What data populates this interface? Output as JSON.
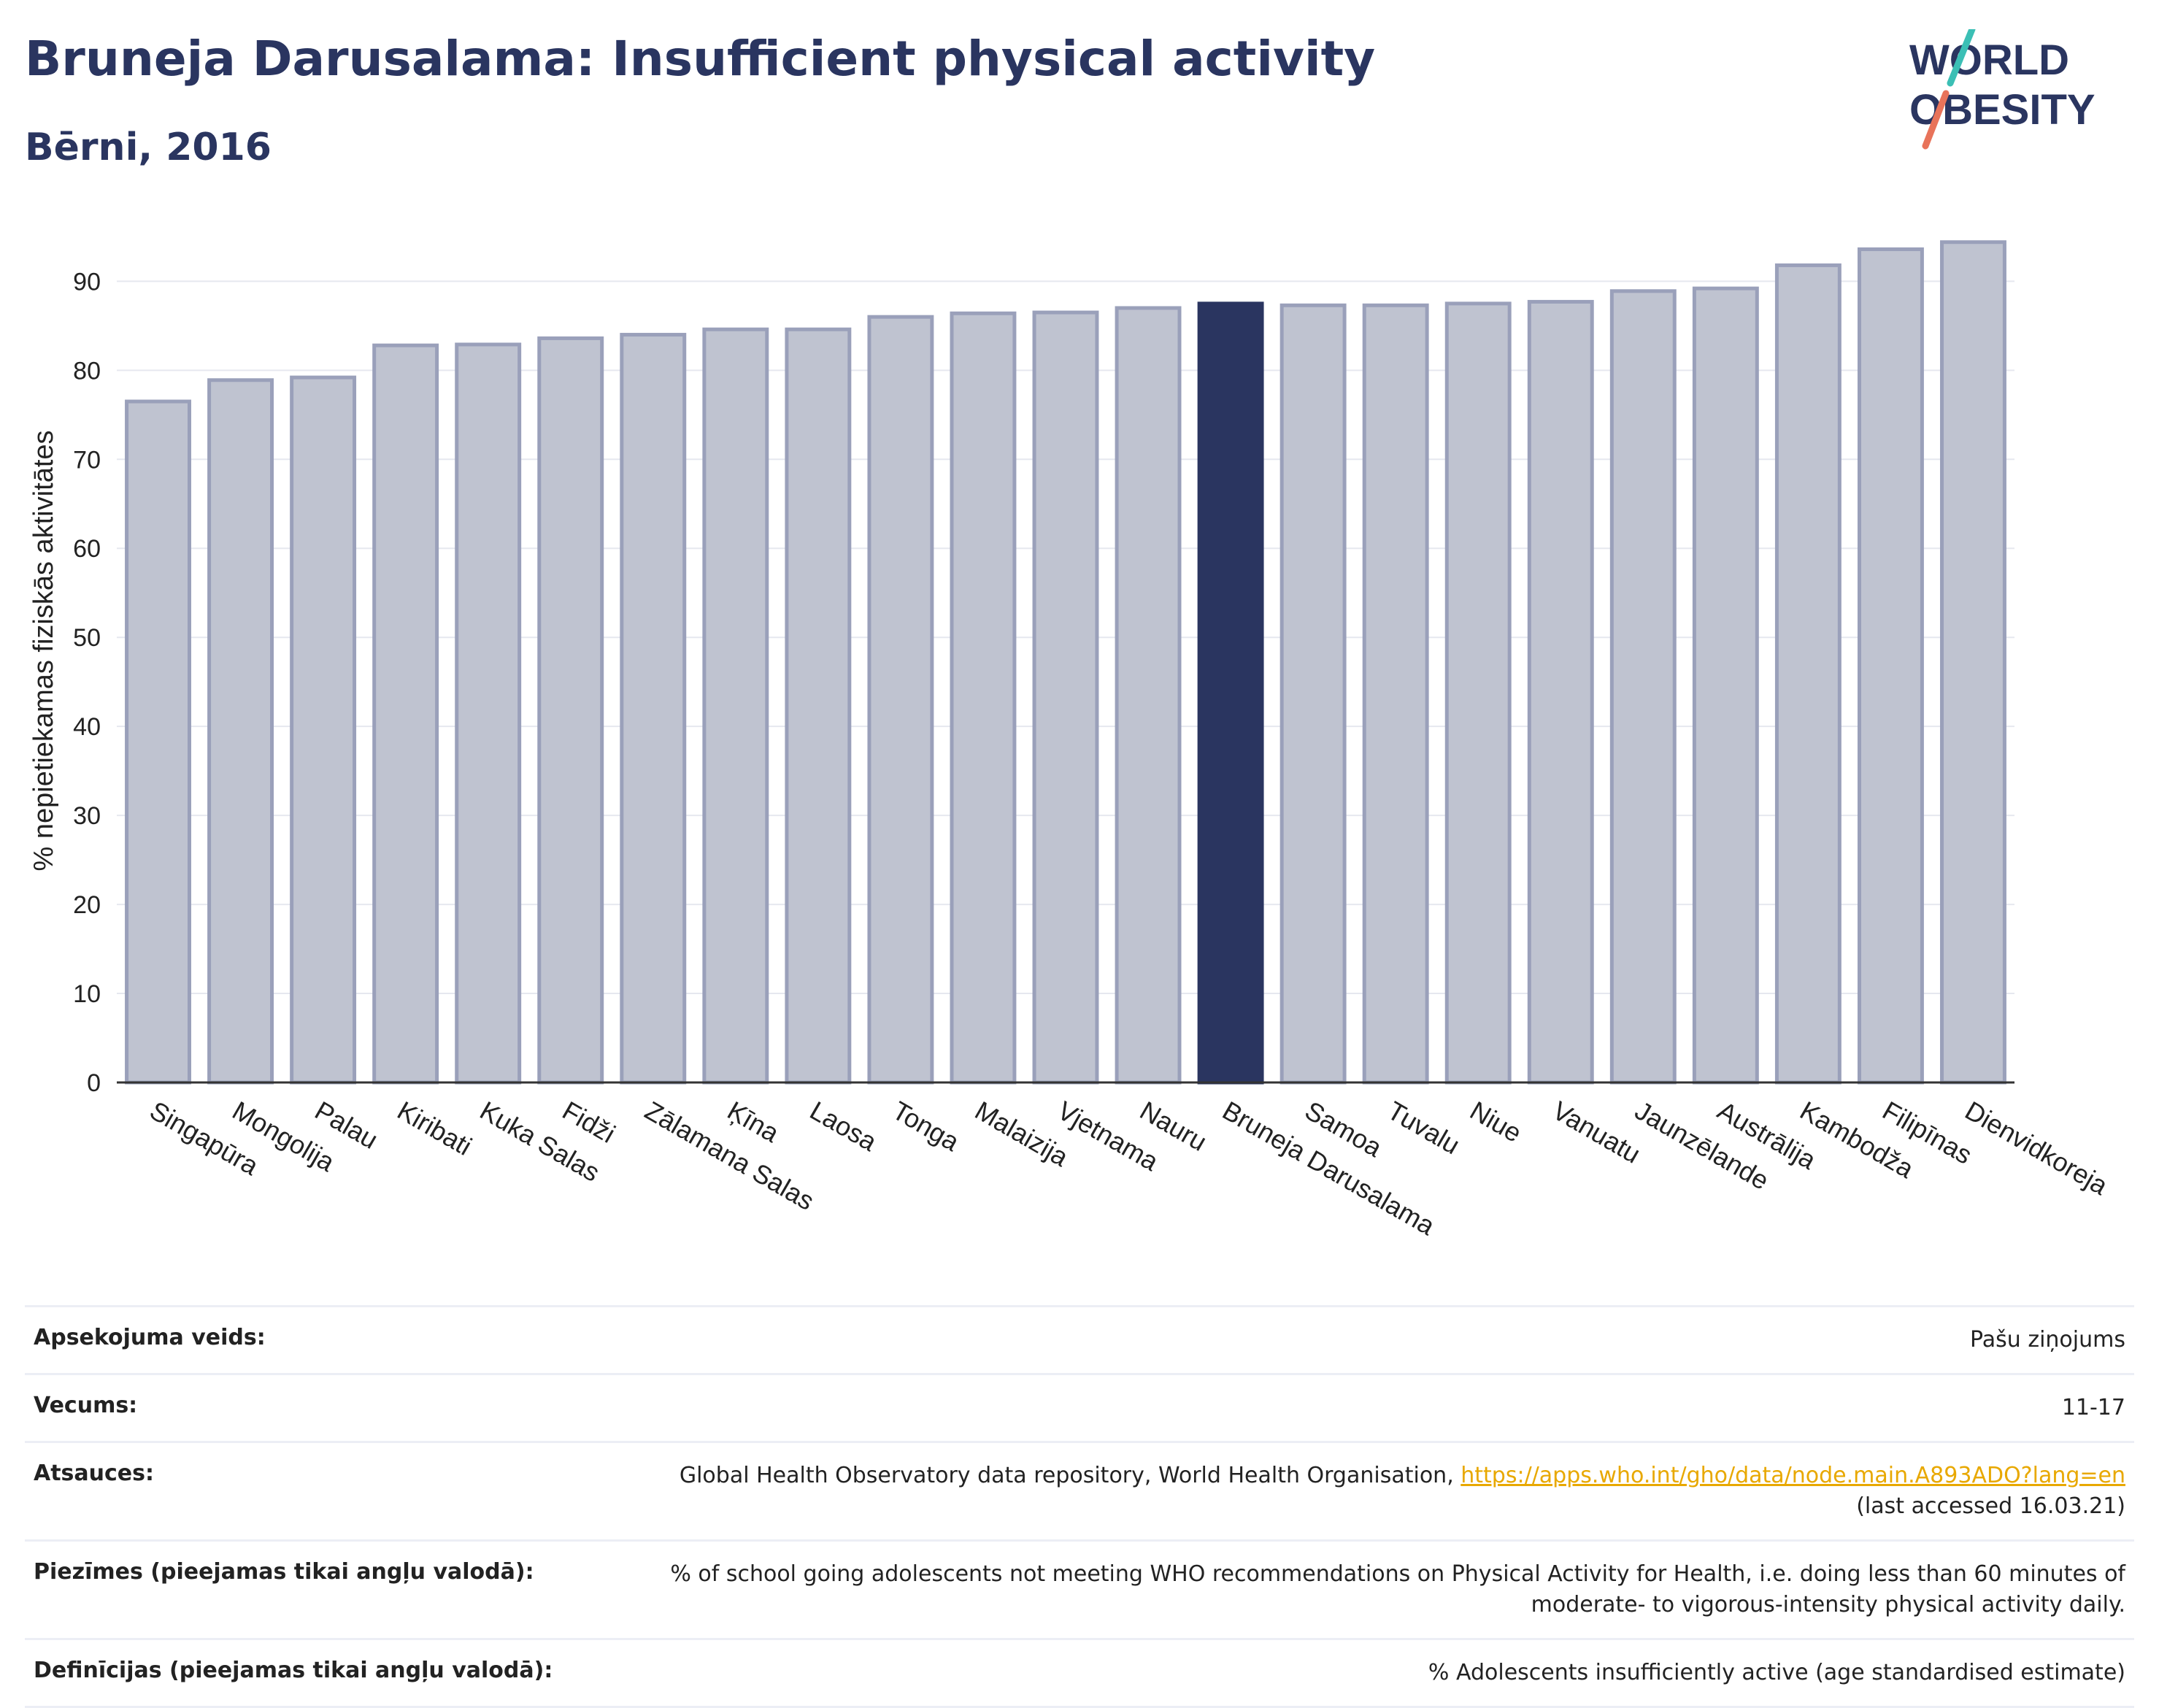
{
  "header": {
    "title": "Bruneja Darusalama: Insufficient physical activity",
    "subtitle": "Bērni, 2016"
  },
  "logo": {
    "line1": "WORLD",
    "line2": "OBESITY"
  },
  "chart_data": {
    "type": "bar",
    "ylabel": "% nepietiekamas fiziskās aktivitātes",
    "ylim": [
      0,
      97
    ],
    "yticks": [
      0,
      10,
      20,
      30,
      40,
      50,
      60,
      70,
      80,
      90
    ],
    "grid": true,
    "highlight": "Bruneja Darusalama",
    "colors": {
      "bar": "#bfc3d0",
      "bar_edge": "#9aa0ba",
      "highlight": "#2a3560",
      "grid": "#e6e8ef",
      "axis": "#333333"
    },
    "categories": [
      "Singapūra",
      "Mongolija",
      "Palau",
      "Kiribati",
      "Kuka Salas",
      "Fidži",
      "Zālamana Salas",
      "Ķīna",
      "Laosa",
      "Tonga",
      "Malaizija",
      "Vjetnama",
      "Nauru",
      "Bruneja Darusalama",
      "Samoa",
      "Tuvalu",
      "Niue",
      "Vanuatu",
      "Jaunzēlande",
      "Austrālija",
      "Kambodža",
      "Filipīnas",
      "Dienvidkoreja"
    ],
    "values": [
      76.5,
      78.9,
      79.2,
      82.8,
      82.9,
      83.6,
      84.0,
      84.6,
      84.6,
      86.0,
      86.4,
      86.5,
      87.0,
      87.5,
      87.3,
      87.3,
      87.5,
      87.7,
      88.9,
      89.2,
      91.8,
      93.6,
      94.4
    ]
  },
  "info": {
    "rows": [
      {
        "label": "Apsekojuma veids:",
        "value": "Pašu ziņojums"
      },
      {
        "label": "Vecums:",
        "value": "11-17"
      },
      {
        "label": "Atsauces:",
        "value": "Global Health Observatory data repository, World Health Organisation, ",
        "link": "https://apps.who.int/gho/data/node.main.A893ADO?lang=en",
        "value2": "(last accessed 16.03.21)"
      },
      {
        "label": "Piezīmes (pieejamas tikai angļu valodā):",
        "value": "% of school going adolescents not meeting WHO recommendations on Physical Activity for Health, i.e. doing less than 60 minutes of",
        "value2": "moderate- to vigorous-intensity physical activity daily."
      },
      {
        "label": "Definīcijas (pieejamas tikai angļu valodā):",
        "value": "% Adolescents insufficiently active (age standardised estimate)"
      }
    ]
  }
}
